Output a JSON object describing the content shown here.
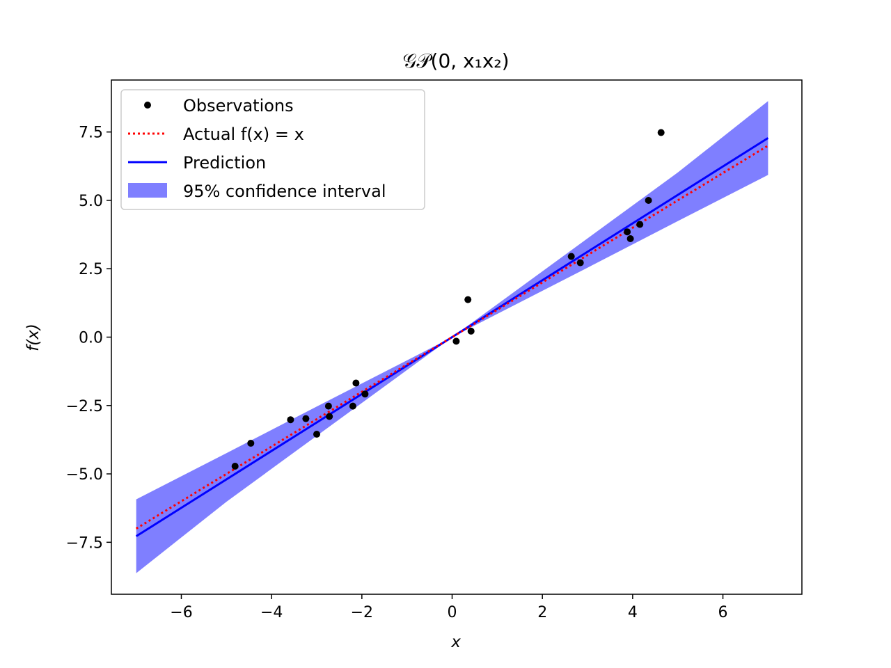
{
  "chart_data": {
    "type": "scatter",
    "title": "𝒢𝒫(0, x₁x₂)",
    "xlabel": "x",
    "ylabel": "f(x)",
    "xlim": [
      -7.55,
      7.75
    ],
    "ylim": [
      -9.4,
      9.4
    ],
    "xticks": [
      -6,
      -4,
      -2,
      0,
      2,
      4,
      6
    ],
    "xtick_labels": [
      "−6",
      "−4",
      "−2",
      "0",
      "2",
      "4",
      "6"
    ],
    "yticks": [
      -7.5,
      -5.0,
      -2.5,
      0.0,
      2.5,
      5.0,
      7.5
    ],
    "ytick_labels": [
      "−7.5",
      "−5.0",
      "−2.5",
      "0.0",
      "2.5",
      "5.0",
      "7.5"
    ],
    "grid": false,
    "legend_position": "upper-left",
    "series": [
      {
        "name": "Observations",
        "kind": "scatter",
        "color": "#000000",
        "x": [
          -4.81,
          -4.46,
          -3.58,
          -3.24,
          -3.0,
          -2.74,
          -2.72,
          -2.2,
          -2.13,
          -1.93,
          0.09,
          0.35,
          0.42,
          2.64,
          2.84,
          3.88,
          3.95,
          4.16,
          4.35,
          4.63
        ],
        "y": [
          -4.72,
          -3.88,
          -3.02,
          -2.98,
          -3.55,
          -2.52,
          -2.9,
          -2.52,
          -1.68,
          -2.08,
          -0.15,
          1.37,
          0.22,
          2.95,
          2.72,
          3.85,
          3.6,
          4.12,
          5.0,
          7.48
        ]
      },
      {
        "name": "Actual f(x) = x",
        "kind": "line",
        "style": "dotted",
        "color": "#ff0000",
        "x": [
          -7,
          7
        ],
        "y": [
          -7,
          7
        ]
      },
      {
        "name": "Prediction",
        "kind": "line",
        "style": "solid",
        "color": "#0000ff",
        "x": [
          -7,
          7
        ],
        "y": [
          -7.28,
          7.28
        ]
      },
      {
        "name": "95% confidence interval",
        "kind": "band",
        "color": "#0000ff",
        "opacity": 0.5,
        "x": [
          -7,
          -5,
          -3,
          -1,
          0,
          1,
          3,
          5,
          7
        ],
        "upper": [
          -5.93,
          -4.24,
          -2.54,
          -0.85,
          0.0,
          1.2,
          3.61,
          6.02,
          8.63
        ],
        "lower": [
          -8.63,
          -6.02,
          -3.61,
          -1.2,
          0.0,
          0.85,
          2.54,
          4.24,
          5.93
        ]
      }
    ]
  }
}
